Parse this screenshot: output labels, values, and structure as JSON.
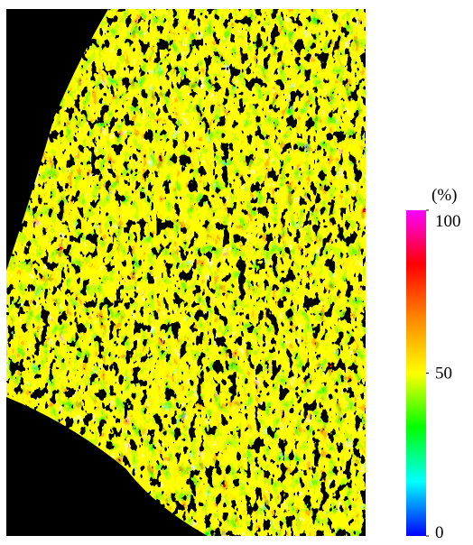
{
  "colorbar": {
    "label": "(%)",
    "lim": [
      0,
      100
    ],
    "ticks": [
      0,
      50,
      100
    ],
    "colors": [
      "#0000ff",
      "#00ffff",
      "#00ff00",
      "#ffff00",
      "#ff8800",
      "#ff0000",
      "#ff00ff"
    ]
  }
}
